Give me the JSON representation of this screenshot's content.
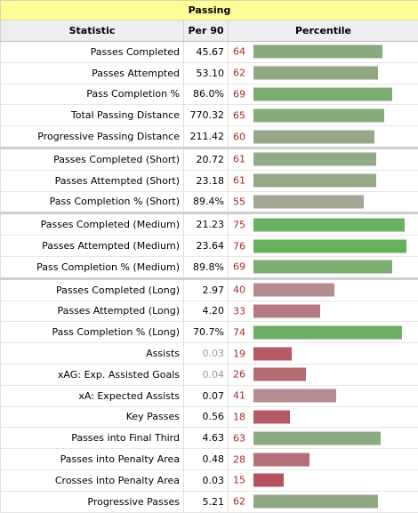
{
  "table": {
    "title": "Passing",
    "headers": {
      "stat": "Statistic",
      "per90": "Per 90",
      "percentile": "Percentile"
    },
    "rows": [
      {
        "stat": "Passes Completed",
        "per90": "45.67",
        "percentile": 64,
        "sep": false,
        "muted": false
      },
      {
        "stat": "Passes Attempted",
        "per90": "53.10",
        "percentile": 62,
        "sep": false,
        "muted": false
      },
      {
        "stat": "Pass Completion %",
        "per90": "86.0%",
        "percentile": 69,
        "sep": false,
        "muted": false
      },
      {
        "stat": "Total Passing Distance",
        "per90": "770.32",
        "percentile": 65,
        "sep": false,
        "muted": false
      },
      {
        "stat": "Progressive Passing Distance",
        "per90": "211.42",
        "percentile": 60,
        "sep": false,
        "muted": false
      },
      {
        "stat": "Passes Completed (Short)",
        "per90": "20.72",
        "percentile": 61,
        "sep": true,
        "muted": false
      },
      {
        "stat": "Passes Attempted (Short)",
        "per90": "23.18",
        "percentile": 61,
        "sep": false,
        "muted": false
      },
      {
        "stat": "Pass Completion % (Short)",
        "per90": "89.4%",
        "percentile": 55,
        "sep": false,
        "muted": false
      },
      {
        "stat": "Passes Completed (Medium)",
        "per90": "21.23",
        "percentile": 75,
        "sep": true,
        "muted": false
      },
      {
        "stat": "Passes Attempted (Medium)",
        "per90": "23.64",
        "percentile": 76,
        "sep": false,
        "muted": false
      },
      {
        "stat": "Pass Completion % (Medium)",
        "per90": "89.8%",
        "percentile": 69,
        "sep": false,
        "muted": false
      },
      {
        "stat": "Passes Completed (Long)",
        "per90": "2.97",
        "percentile": 40,
        "sep": true,
        "muted": false
      },
      {
        "stat": "Passes Attempted (Long)",
        "per90": "4.20",
        "percentile": 33,
        "sep": false,
        "muted": false
      },
      {
        "stat": "Pass Completion % (Long)",
        "per90": "70.7%",
        "percentile": 74,
        "sep": false,
        "muted": false
      },
      {
        "stat": "Assists",
        "per90": "0.03",
        "percentile": 19,
        "sep": false,
        "muted": true
      },
      {
        "stat": "xAG: Exp. Assisted Goals",
        "per90": "0.04",
        "percentile": 26,
        "sep": false,
        "muted": true
      },
      {
        "stat": "xA: Expected Assists",
        "per90": "0.07",
        "percentile": 41,
        "sep": false,
        "muted": false
      },
      {
        "stat": "Key Passes",
        "per90": "0.56",
        "percentile": 18,
        "sep": false,
        "muted": false
      },
      {
        "stat": "Passes into Final Third",
        "per90": "4.63",
        "percentile": 63,
        "sep": false,
        "muted": false
      },
      {
        "stat": "Passes into Penalty Area",
        "per90": "0.48",
        "percentile": 28,
        "sep": false,
        "muted": false
      },
      {
        "stat": "Crosses into Penalty Area",
        "per90": "0.03",
        "percentile": 15,
        "sep": false,
        "muted": false
      },
      {
        "stat": "Progressive Passes",
        "per90": "5.21",
        "percentile": 62,
        "sep": false,
        "muted": false
      }
    ]
  },
  "colors": {
    "title_bg": "#ffff99",
    "header_bg": "#eeeeee",
    "percentile_text": "#a52a2a",
    "bar_low": "#b6515f",
    "bar_mid": "#b3a3a3",
    "bar_high": "#68b060"
  }
}
